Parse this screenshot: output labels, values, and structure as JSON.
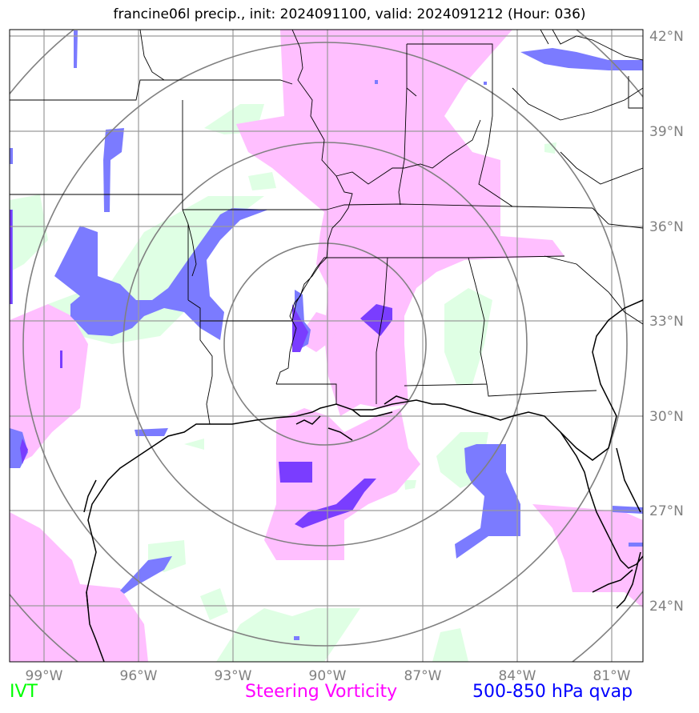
{
  "title": "francine06l precip., init: 2024091100, valid: 2024091212 (Hour: 036)",
  "lat_labels": [
    "42°N",
    "39°N",
    "36°N",
    "33°N",
    "30°N",
    "27°N",
    "24°N"
  ],
  "lon_labels": [
    "99°W",
    "96°W",
    "93°W",
    "90°W",
    "87°W",
    "84°W",
    "81°W"
  ],
  "legend": {
    "ivt": "IVT",
    "vorticity": "Steering Vorticity",
    "qvap": "500-850 hPa qvap"
  },
  "colors": {
    "ivt": "#00ff00",
    "vorticity": "#ff00ff",
    "qvap": "#0000ff",
    "ivt_fill": "#dfffe4",
    "vorticity_fill": "#ffbfff",
    "qvap_fill": "#7b7bff",
    "qvap_strong": "#7a3dff",
    "grid": "#9a9a9a"
  }
}
